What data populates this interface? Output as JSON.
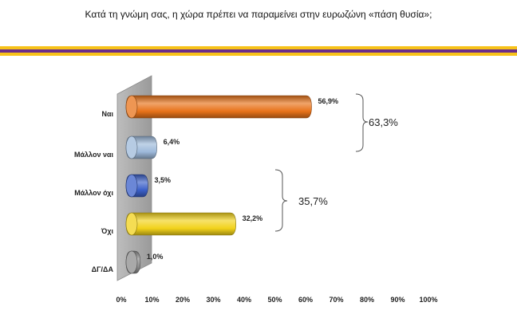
{
  "title": "Κατά τη γνώμη σας, η χώρα πρέπει να παραμείνει στην ευρωζώνη «πάση θυσία»;",
  "stripe_colors": [
    "#F7C21A",
    "#6B2D8A"
  ],
  "chart_data": {
    "type": "bar",
    "orientation": "horizontal",
    "categories": [
      "Ναι",
      "Μάλλον ναι",
      "Μάλλον όχι",
      "Όχι",
      "ΔΓ/ΔΑ"
    ],
    "values": [
      56.9,
      6.4,
      3.5,
      32.2,
      1.0
    ],
    "value_labels": [
      "56,9%",
      "6,4%",
      "3,5%",
      "32,2%",
      "1,0%"
    ],
    "colors": [
      "#E8731A",
      "#9DB9DA",
      "#3A5FC8",
      "#F2D21A",
      "#8C8C8C"
    ],
    "xlim": [
      0,
      100
    ],
    "x_ticks": [
      "0%",
      "10%",
      "20%",
      "30%",
      "40%",
      "50%",
      "60%",
      "70%",
      "80%",
      "90%",
      "100%"
    ],
    "grid": false,
    "groups": [
      {
        "label": "63,3%",
        "from": 0,
        "to": 1
      },
      {
        "label": "35,7%",
        "from": 2,
        "to": 3
      }
    ]
  }
}
